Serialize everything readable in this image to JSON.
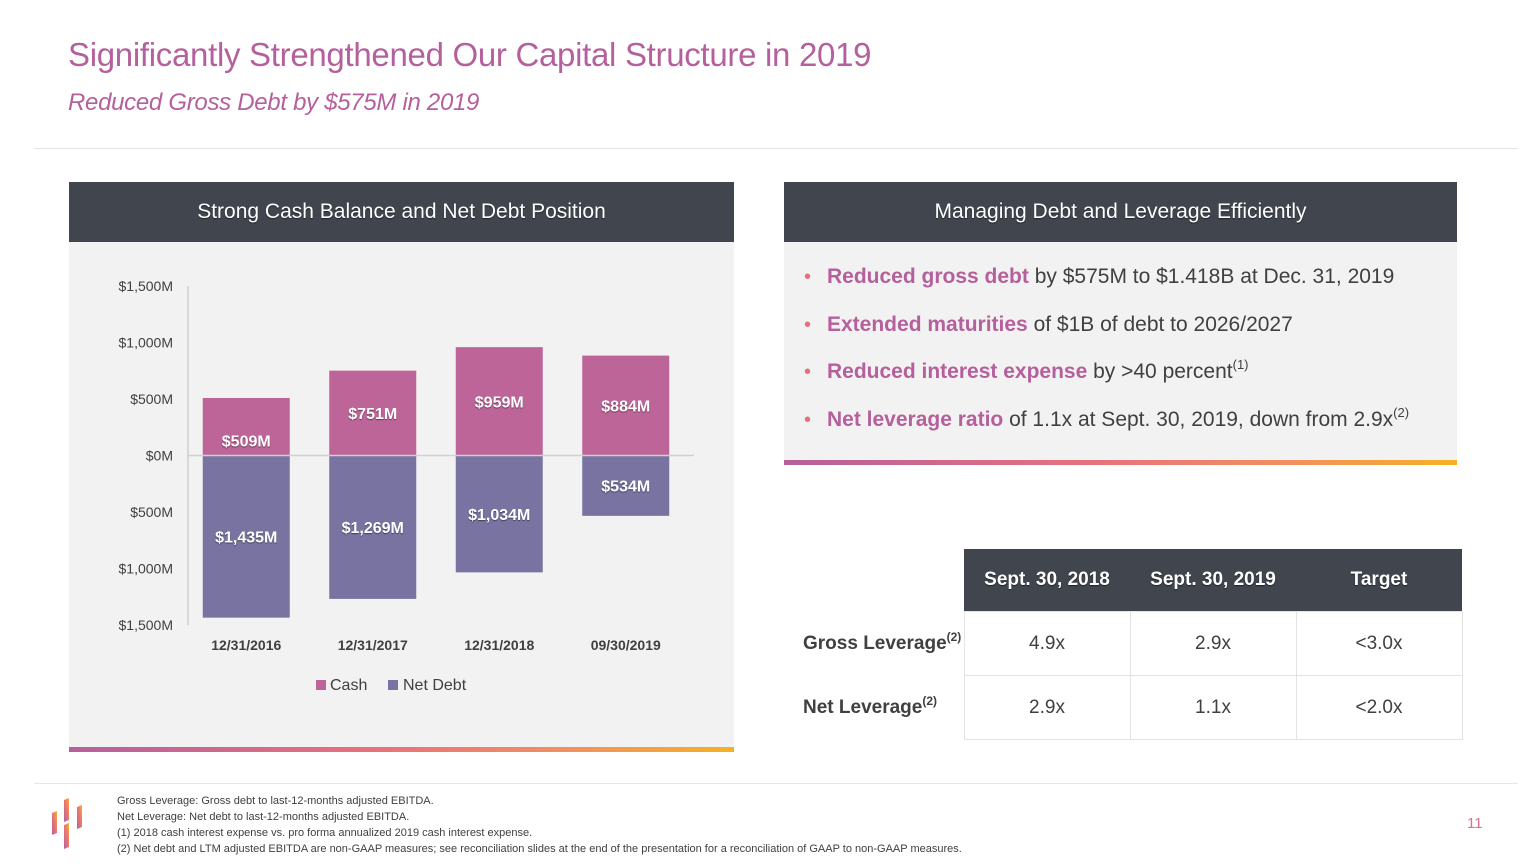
{
  "header": {
    "title": "Significantly Strengthened Our Capital Structure in 2019",
    "subtitle": "Reduced Gross Debt by $575M in 2019"
  },
  "left_panel": {
    "title": "Strong Cash Balance and Net Debt Position"
  },
  "right_panel": {
    "title": "Managing Debt and Leverage Efficiently",
    "bullets": [
      {
        "highlight": "Reduced gross debt",
        "text": " by $575M to $1.418B at Dec. 31, 2019",
        "sup": ""
      },
      {
        "highlight": "Extended maturities",
        "text": " of $1B of debt to 2026/2027",
        "sup": ""
      },
      {
        "highlight": "Reduced interest expense",
        "text": " by >40 percent",
        "sup": "(1)"
      },
      {
        "highlight": "Net leverage ratio",
        "text": " of 1.1x at Sept. 30, 2019, down from 2.9x",
        "sup": "(2)"
      }
    ]
  },
  "leverage_table": {
    "headers": [
      "Sept. 30, 2018",
      "Sept. 30, 2019",
      "Target"
    ],
    "rows": [
      {
        "label": "Gross Leverage",
        "sup": "(2)",
        "values": [
          "4.9x",
          "2.9x",
          "<3.0x"
        ]
      },
      {
        "label": "Net Leverage",
        "sup": "(2)",
        "values": [
          "2.9x",
          "1.1x",
          "<2.0x"
        ]
      }
    ]
  },
  "footnotes": [
    "Gross Leverage:  Gross debt to last-12-months adjusted EBITDA.",
    "Net Leverage:  Net debt to last-12-months adjusted EBITDA.",
    "(1)  2018 cash interest expense vs. pro forma annualized 2019 cash interest expense.",
    "(2)  Net debt and LTM adjusted EBITDA are non-GAAP measures; see reconciliation slides at the end of the presentation for a reconciliation of GAAP to non-GAAP measures."
  ],
  "page_number": "11",
  "colors": {
    "brand_pink": "#b5609c",
    "net_debt": "#7873a0",
    "header_dark": "#40454e",
    "accent_orange": "#f5b125"
  },
  "chart_data": {
    "type": "bar",
    "stacked": "diverging",
    "title": "Strong Cash Balance and Net Debt Position",
    "categories": [
      "12/31/2016",
      "12/31/2017",
      "12/31/2018",
      "09/30/2019"
    ],
    "series": [
      {
        "name": "Cash",
        "color": "#bd6598",
        "direction": "up",
        "values": [
          509,
          751,
          959,
          884
        ],
        "labels": [
          "$509M",
          "$751M",
          "$959M",
          "$884M"
        ]
      },
      {
        "name": "Net Debt",
        "color": "#7873a0",
        "direction": "down",
        "values": [
          1435,
          1269,
          1034,
          534
        ],
        "labels": [
          "$1,435M",
          "$1,269M",
          "$1,034M",
          "$534M"
        ]
      }
    ],
    "y_ticks": [
      1500,
      1000,
      500,
      0,
      -500,
      -1000,
      -1500
    ],
    "y_tick_labels": [
      "$1,500M",
      "$1,000M",
      "$500M",
      "$0M",
      "$500M",
      "$1,000M",
      "$1,500M"
    ],
    "ylim": [
      -1500,
      1500
    ],
    "xlabel": "",
    "ylabel": "",
    "grid": false,
    "legend": "bottom-center"
  }
}
